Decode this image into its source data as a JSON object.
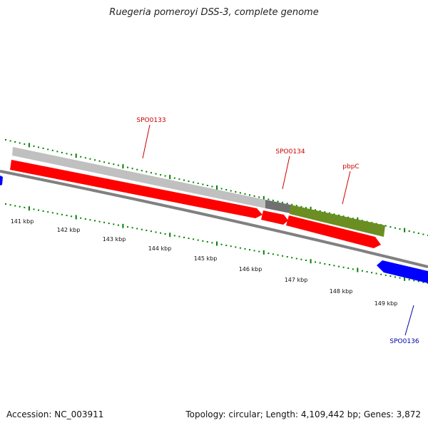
{
  "title": "Ruegeria pomeroyi DSS-3, complete genome",
  "footer": {
    "accession": "Accession: NC_003911",
    "stats": "Topology: circular; Length: 4,109,442 bp; Genes: 3,872"
  },
  "colors": {
    "forward_gene": "#ff0000",
    "reverse_gene": "#0000ff",
    "rna_band": "#c0c0c0",
    "rna_band_dark": "#707070",
    "pbpC_band": "#6b8e23",
    "ticks": "#008000",
    "backbone": "#808080",
    "forward_label": "#cc0000",
    "reverse_label": "#0000aa"
  },
  "scale": {
    "unit": "kbp",
    "labels": [
      "141 kbp",
      "142 kbp",
      "143 kbp",
      "144 kbp",
      "145 kbp",
      "146 kbp",
      "147 kbp",
      "148 kbp",
      "149 kbp"
    ]
  },
  "genes": [
    {
      "name": "SPO0133",
      "strand": "forward"
    },
    {
      "name": "SPO0134",
      "strand": "forward"
    },
    {
      "name": "pbpC",
      "strand": "forward"
    },
    {
      "name": "SPO0136",
      "strand": "reverse"
    }
  ]
}
